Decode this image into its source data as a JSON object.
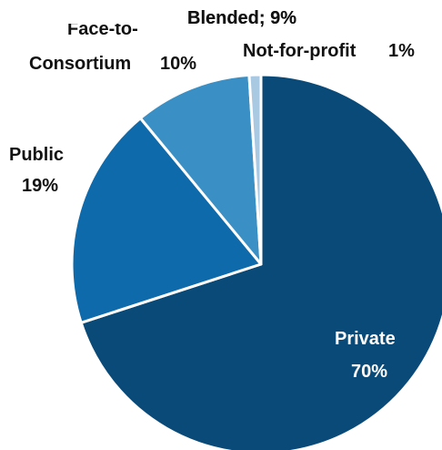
{
  "chart_data": {
    "type": "pie",
    "slices": [
      {
        "label": "Private",
        "value": 70,
        "value_text": "70%",
        "color": "#0a4a78"
      },
      {
        "label": "Public",
        "value": 19,
        "value_text": "19%",
        "color": "#0e6aab"
      },
      {
        "label": "Consortium",
        "value": 10,
        "value_text": "10%",
        "color": "#3a8fc4"
      },
      {
        "label": "Not-for-profit",
        "value": 1,
        "value_text": "1%",
        "color": "#a9c9e3"
      }
    ],
    "annotations": [
      {
        "text": "Blended; 9%"
      },
      {
        "text": "Face-to-"
      }
    ],
    "text_colors": {
      "outside": "#111111",
      "inside": "#ffffff"
    },
    "separator_color": "#ffffff",
    "legend": "none"
  }
}
